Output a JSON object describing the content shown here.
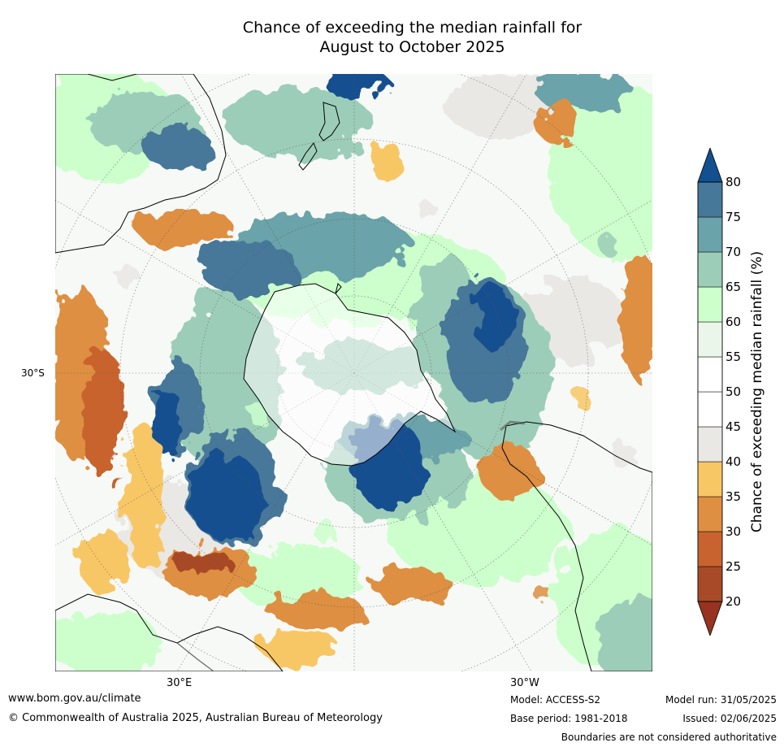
{
  "title_line1": "Chance of exceeding the median rainfall for",
  "title_line2": "August to October 2025",
  "map": {
    "projection": "south polar stereographic",
    "lat_label": "30°S",
    "lon_labels": [
      "30°E",
      "30°W"
    ],
    "continents": [
      "Antarctica",
      "Australia",
      "New Zealand",
      "South America",
      "Africa"
    ]
  },
  "colorbar": {
    "label": "Chance of exceeding median rainfall (%)",
    "ticks": [
      20,
      25,
      30,
      35,
      40,
      45,
      50,
      55,
      60,
      65,
      70,
      75,
      80
    ],
    "colors": [
      "#973320",
      "#a84a28",
      "#c8632f",
      "#de8f42",
      "#f8c765",
      "#eae8e5",
      "#ffffff",
      "#ffffff",
      "#ebf6eb",
      "#ccffcc",
      "#9ccdb8",
      "#6aa3a9",
      "#467899",
      "#125090"
    ],
    "extend": "both"
  },
  "footer": {
    "website": "www.bom.gov.au/climate",
    "copyright": "© Commonwealth of Australia 2025, Australian Bureau of Meteorology",
    "model": "Model: ACCESS-S2",
    "base_period": "Base period: 1981-2018",
    "model_run": "Model run: 31/05/2025",
    "issued": "Issued: 02/06/2025",
    "disclaimer": "Boundaries are not considered authoritative"
  }
}
